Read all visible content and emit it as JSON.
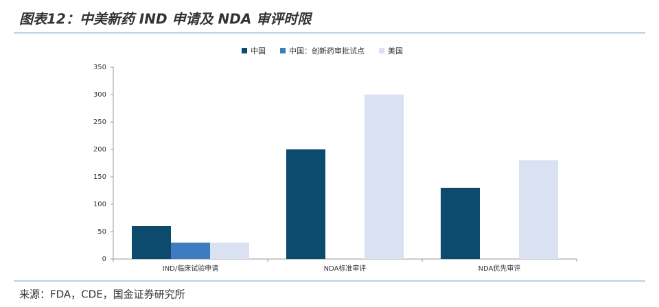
{
  "chart_data": {
    "type": "bar",
    "title": "图表12：中美新药 IND 申请及 NDA 审评时限",
    "source": "来源：FDA，CDE，国金证券研究所",
    "categories": [
      "IND/临床试验申请",
      "NDA标准审评",
      "NDA优先审评"
    ],
    "series": [
      {
        "name": "中国",
        "color": "#0c4a6e",
        "values": [
          60,
          200,
          130
        ]
      },
      {
        "name": "中国：创新药审批试点",
        "color": "#3d7cc0",
        "values": [
          30,
          null,
          null
        ]
      },
      {
        "name": "美国",
        "color": "#d9e1f2",
        "values": [
          30,
          300,
          180
        ]
      }
    ],
    "ylim": [
      0,
      350
    ],
    "yticks": [
      0,
      50,
      100,
      150,
      200,
      250,
      300,
      350
    ],
    "grid": false,
    "legend": "top"
  }
}
